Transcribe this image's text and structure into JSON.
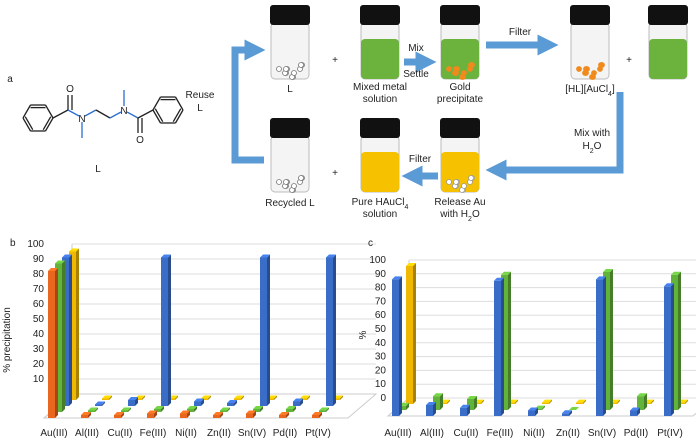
{
  "diagram": {
    "panel_label": "a",
    "molecule": {
      "label": "L",
      "nitrogen": "N",
      "oxygen": "O"
    },
    "plus": "+",
    "reuse": [
      "Reuse",
      "L"
    ],
    "l_vial": "L",
    "mixed": [
      "Mixed metal",
      "solution"
    ],
    "mix": "Mix",
    "settle": "Settle",
    "gold": [
      "Gold",
      "precipitate"
    ],
    "filter1": "Filter",
    "complex": [
      {
        "text": "[HL][AuCl",
        "sub": "4",
        "end": "]"
      }
    ],
    "mix_water": [
      "Mix with",
      {
        "text": "H",
        "sub": "2",
        "end": "O"
      }
    ],
    "filter2": "Filter",
    "release": [
      "Release Au",
      {
        "text": "with H",
        "sub": "2",
        "end": "O"
      }
    ],
    "pure": [
      {
        "text": "Pure HAuCl",
        "sub": "4"
      },
      "solution"
    ],
    "recycled": [
      "Recycled L"
    ]
  },
  "chart_data": [
    {
      "type": "bar3d",
      "panel_label": "b",
      "ylabel": "% precipitation",
      "categories": [
        "Au(III)",
        "Al(III)",
        "Cu(II)",
        "Fe(III)",
        "Ni(II)",
        "Zn(II)",
        "Sn(IV)",
        "Pd(II)",
        "Pt(IV)"
      ],
      "series": [
        {
          "color": "#e8661e",
          "values": [
            98,
            2,
            2,
            3,
            3,
            2,
            3,
            2,
            2
          ]
        },
        {
          "color": "#62b33a",
          "values": [
            99,
            1,
            1,
            2,
            2,
            1,
            2,
            2,
            1
          ]
        },
        {
          "color": "#3a6dc8",
          "values": [
            99,
            1,
            4,
            99,
            3,
            2,
            99,
            3,
            99
          ]
        },
        {
          "color": "#f0b800",
          "values": [
            99,
            1,
            1,
            1,
            1,
            1,
            1,
            1,
            1
          ]
        }
      ],
      "ylim": [
        0,
        100
      ],
      "yticks": [
        10,
        20,
        30,
        40,
        50,
        60,
        70,
        80,
        90,
        100
      ],
      "grid": true
    },
    {
      "type": "bar3d",
      "panel_label": "c",
      "ylabel": "%",
      "categories": [
        "Au(III)",
        "Al(III)",
        "Cu(II)",
        "Fe(III)",
        "Ni(II)",
        "Zn(II)",
        "Sn(IV)",
        "Pd(II)",
        "Pt(IV)"
      ],
      "series": [
        {
          "color": "#3a6dc8",
          "values": [
            99,
            8,
            6,
            98,
            4,
            2,
            99,
            4,
            94
          ]
        },
        {
          "color": "#62b33a",
          "values": [
            3,
            10,
            8,
            98,
            1,
            0,
            100,
            10,
            98
          ]
        },
        {
          "color": "#f0b800",
          "values": [
            100,
            1,
            1,
            1,
            1,
            1,
            1,
            1,
            1
          ]
        }
      ],
      "ylim": [
        0,
        100
      ],
      "yticks": [
        0,
        10,
        20,
        30,
        40,
        50,
        60,
        70,
        80,
        90,
        100
      ],
      "grid": true
    }
  ]
}
